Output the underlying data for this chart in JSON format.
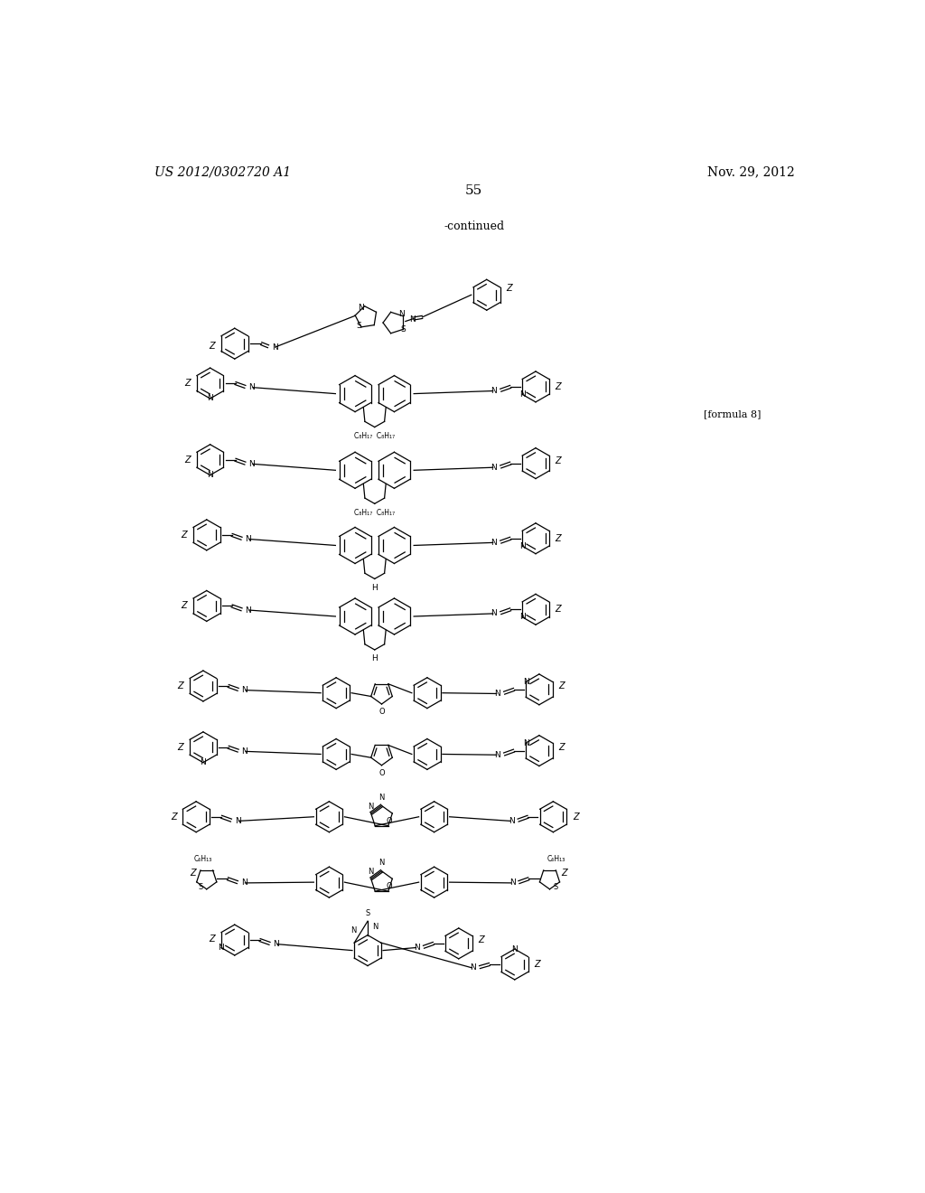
{
  "background_color": "#ffffff",
  "header_left": "US 2012/0302720 A1",
  "header_right": "Nov. 29, 2012",
  "page_number": "55",
  "continued_text": "-continued",
  "formula_label": "[formula 8]"
}
